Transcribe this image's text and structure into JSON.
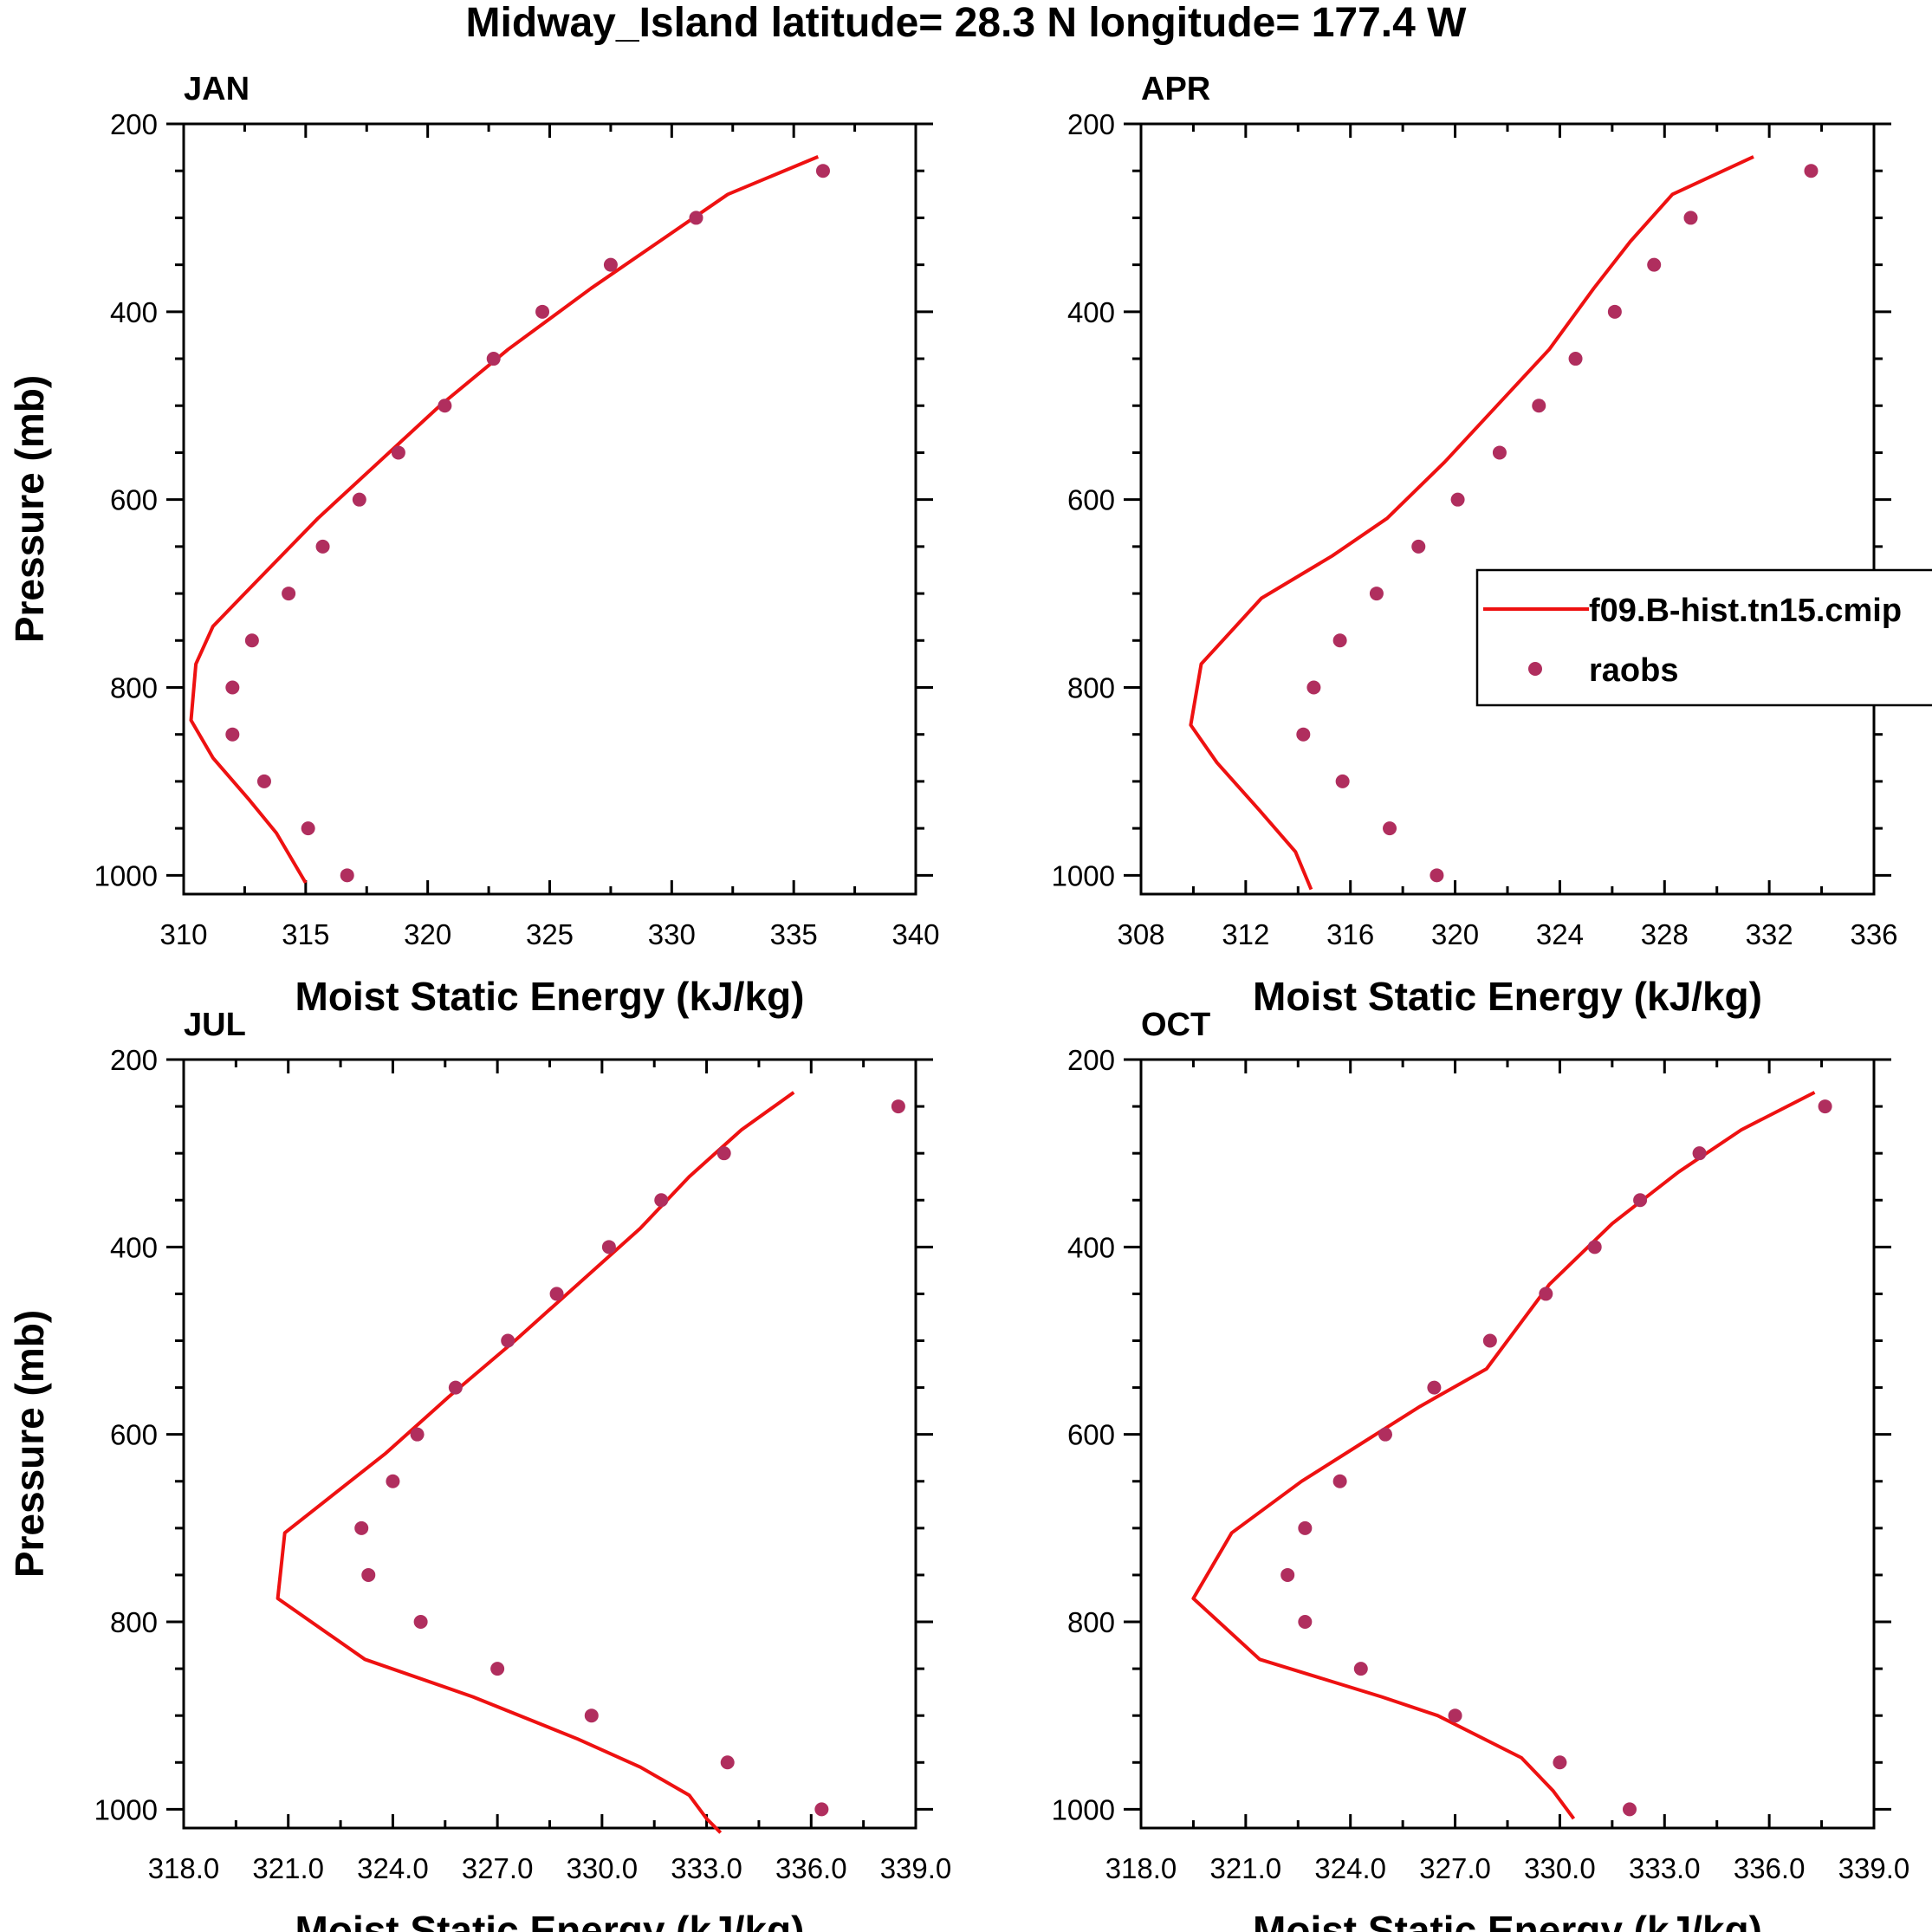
{
  "title": "Midway_Island  latitude= 28.3 N longitude= 177.4 W",
  "colors": {
    "model": "#ee1111",
    "obs": "#b02e5e",
    "axis": "#000000",
    "background": "#ffffff"
  },
  "legend": {
    "model_label": "f09.B-hist.tn15.cmip",
    "obs_label": "raobs",
    "panel": "APR"
  },
  "chart_data": [
    {
      "type": "line",
      "panel": "JAN",
      "xlabel": "Moist Static Energy (kJ/kg)",
      "ylabel": "Pressure (mb)",
      "xlim": [
        310,
        340
      ],
      "ylim": [
        1020,
        200
      ],
      "xticks": [
        "310",
        "315",
        "320",
        "325",
        "330",
        "335",
        "340"
      ],
      "xtick_values": [
        310,
        315,
        320,
        325,
        330,
        335,
        340
      ],
      "yticks": [
        "200",
        "400",
        "600",
        "800",
        "1000"
      ],
      "ytick_values": [
        200,
        400,
        600,
        800,
        1000
      ],
      "series": [
        {
          "name": "f09.B-hist.tn15.cmip",
          "kind": "line",
          "x": [
            336.0,
            332.3,
            329.5,
            326.7,
            323.3,
            320.5,
            318.0,
            315.5,
            312.5,
            311.2,
            310.5,
            310.3,
            311.2,
            312.7,
            313.8,
            315.0
          ],
          "y": [
            235,
            275,
            325,
            375,
            440,
            500,
            560,
            620,
            700,
            735,
            775,
            835,
            875,
            920,
            955,
            1008
          ]
        },
        {
          "name": "raobs",
          "kind": "scatter",
          "x": [
            336.2,
            331.0,
            327.5,
            324.7,
            322.7,
            320.7,
            318.8,
            317.2,
            315.7,
            314.3,
            312.8,
            312.0,
            312.0,
            313.3,
            315.1,
            316.7
          ],
          "y": [
            250,
            300,
            350,
            400,
            450,
            500,
            550,
            600,
            650,
            700,
            750,
            800,
            850,
            900,
            950,
            1000
          ]
        }
      ]
    },
    {
      "type": "line",
      "panel": "APR",
      "xlabel": "Moist Static Energy (kJ/kg)",
      "ylabel": "",
      "xlim": [
        308,
        336
      ],
      "ylim": [
        1020,
        200
      ],
      "xticks": [
        "308",
        "312",
        "316",
        "320",
        "324",
        "328",
        "332",
        "336"
      ],
      "xtick_values": [
        308,
        312,
        316,
        320,
        324,
        328,
        332,
        336
      ],
      "yticks": [
        "200",
        "400",
        "600",
        "800",
        "1000"
      ],
      "ytick_values": [
        200,
        400,
        600,
        800,
        1000
      ],
      "series": [
        {
          "name": "f09.B-hist.tn15.cmip",
          "kind": "line",
          "x": [
            331.4,
            328.3,
            326.7,
            325.3,
            323.6,
            321.6,
            319.6,
            317.4,
            315.3,
            312.6,
            310.3,
            309.9,
            310.9,
            312.5,
            313.9,
            314.5
          ],
          "y": [
            235,
            275,
            325,
            375,
            440,
            500,
            560,
            620,
            660,
            705,
            775,
            840,
            880,
            930,
            975,
            1015
          ]
        },
        {
          "name": "raobs",
          "kind": "scatter",
          "x": [
            333.6,
            329.0,
            327.6,
            326.1,
            324.6,
            323.2,
            321.7,
            320.1,
            318.6,
            317.0,
            315.6,
            314.6,
            314.2,
            315.7,
            317.5,
            319.3
          ],
          "y": [
            250,
            300,
            350,
            400,
            450,
            500,
            550,
            600,
            650,
            700,
            750,
            800,
            850,
            900,
            950,
            1000
          ]
        }
      ]
    },
    {
      "type": "line",
      "panel": "JUL",
      "xlabel": "Moist Static Energy (kJ/kg)",
      "ylabel": "Pressure (mb)",
      "xlim": [
        318,
        339
      ],
      "ylim": [
        1020,
        200
      ],
      "xticks": [
        "318.0",
        "321.0",
        "324.0",
        "327.0",
        "330.0",
        "333.0",
        "336.0",
        "339.0"
      ],
      "xtick_values": [
        318,
        321,
        324,
        327,
        330,
        333,
        336,
        339
      ],
      "yticks": [
        "200",
        "400",
        "600",
        "800",
        "1000"
      ],
      "ytick_values": [
        200,
        400,
        600,
        800,
        1000
      ],
      "series": [
        {
          "name": "f09.B-hist.tn15.cmip",
          "kind": "line",
          "x": [
            335.5,
            334.0,
            332.5,
            331.1,
            329.3,
            327.5,
            325.6,
            323.8,
            320.9,
            320.7,
            323.2,
            326.3,
            329.3,
            331.1,
            332.5,
            333.0,
            333.4
          ],
          "y": [
            235,
            275,
            325,
            380,
            440,
            500,
            560,
            620,
            705,
            775,
            840,
            880,
            925,
            955,
            985,
            1010,
            1025
          ]
        },
        {
          "name": "raobs",
          "kind": "scatter",
          "x": [
            338.5,
            333.5,
            331.7,
            330.2,
            328.7,
            327.3,
            325.8,
            324.7,
            324.0,
            323.1,
            323.3,
            324.8,
            327.0,
            329.7,
            333.6,
            336.3
          ],
          "y": [
            250,
            300,
            350,
            400,
            450,
            500,
            550,
            600,
            650,
            700,
            750,
            800,
            850,
            900,
            950,
            1000
          ]
        }
      ]
    },
    {
      "type": "line",
      "panel": "OCT",
      "xlabel": "Moist Static Energy (kJ/kg)",
      "ylabel": "",
      "xlim": [
        318,
        339
      ],
      "ylim": [
        1020,
        200
      ],
      "xticks": [
        "318.0",
        "321.0",
        "324.0",
        "327.0",
        "330.0",
        "333.0",
        "336.0",
        "339.0"
      ],
      "xtick_values": [
        318,
        321,
        324,
        327,
        330,
        333,
        336,
        339
      ],
      "yticks": [
        "200",
        "400",
        "600",
        "800",
        "1000"
      ],
      "ytick_values": [
        200,
        400,
        600,
        800,
        1000
      ],
      "series": [
        {
          "name": "f09.B-hist.tn15.cmip",
          "kind": "line",
          "x": [
            337.3,
            335.2,
            333.4,
            331.5,
            329.7,
            327.9,
            326.0,
            324.3,
            322.6,
            320.6,
            319.5,
            321.4,
            324.9,
            326.5,
            328.9,
            329.8,
            330.4
          ],
          "y": [
            235,
            275,
            320,
            375,
            440,
            530,
            570,
            610,
            650,
            705,
            775,
            840,
            880,
            900,
            945,
            980,
            1010
          ]
        },
        {
          "name": "raobs",
          "kind": "scatter",
          "x": [
            337.6,
            334.0,
            332.3,
            331.0,
            329.6,
            328.0,
            326.4,
            325.0,
            323.7,
            322.7,
            322.2,
            322.7,
            324.3,
            327.0,
            330.0,
            332.0
          ],
          "y": [
            250,
            300,
            350,
            400,
            450,
            500,
            550,
            600,
            650,
            700,
            750,
            800,
            850,
            900,
            950,
            1000
          ]
        }
      ]
    }
  ]
}
